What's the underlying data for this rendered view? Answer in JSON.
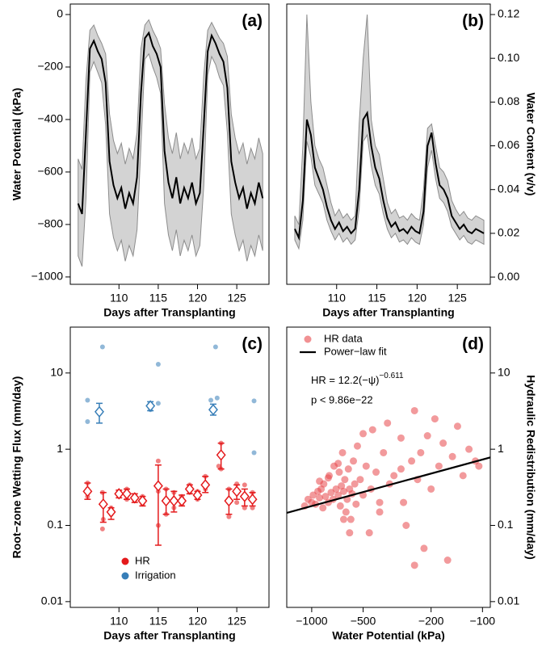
{
  "chart_data": [
    {
      "type": "line",
      "label": "(a)",
      "xlabel": "Days after Transplanting",
      "ylabel": "Water Potential (kPa)",
      "yaxis": "left",
      "xlim": [
        103.8,
        129.1
      ],
      "xticks": [
        110,
        115,
        120,
        125
      ],
      "ylim": [
        -1028,
        40
      ],
      "yticks": [
        0,
        {
          "value": -200,
          "label": "−200"
        },
        {
          "value": -400,
          "label": "−400"
        },
        {
          "value": -600,
          "label": "−600"
        },
        {
          "value": -800,
          "label": "−800"
        },
        {
          "value": -1000,
          "label": "−1000"
        }
      ],
      "color": "#000000",
      "band_color": "#d3d3d3",
      "x": [
        104.8,
        105.3,
        105.8,
        106.3,
        106.8,
        107.3,
        107.8,
        108.3,
        108.8,
        109.3,
        109.8,
        110.3,
        110.8,
        111.3,
        111.8,
        112.3,
        112.8,
        113.3,
        113.8,
        114.3,
        114.8,
        115.3,
        115.8,
        116.3,
        116.8,
        117.3,
        117.8,
        118.3,
        118.8,
        119.3,
        119.8,
        120.3,
        120.8,
        121.3,
        121.8,
        122.3,
        122.8,
        123.3,
        123.8,
        124.3,
        124.8,
        125.3,
        125.8,
        126.3,
        126.8,
        127.3,
        127.8,
        128.3
      ],
      "values": [
        -720,
        -760,
        -450,
        -130,
        -100,
        -140,
        -170,
        -260,
        -560,
        -650,
        -700,
        -660,
        -740,
        -680,
        -720,
        -620,
        -300,
        -90,
        -70,
        -120,
        -150,
        -200,
        -520,
        -640,
        -700,
        -620,
        -720,
        -660,
        -700,
        -640,
        -720,
        -680,
        -420,
        -140,
        -80,
        -110,
        -150,
        -180,
        -280,
        -560,
        -640,
        -700,
        -660,
        -740,
        -680,
        -720,
        -640,
        -700
      ],
      "lower": [
        -920,
        -960,
        -700,
        -220,
        -180,
        -220,
        -260,
        -420,
        -760,
        -850,
        -900,
        -860,
        -940,
        -880,
        -920,
        -820,
        -500,
        -170,
        -150,
        -200,
        -240,
        -300,
        -720,
        -840,
        -900,
        -820,
        -920,
        -860,
        -900,
        -840,
        -920,
        -880,
        -650,
        -230,
        -160,
        -190,
        -240,
        -270,
        -450,
        -760,
        -840,
        -900,
        -860,
        -940,
        -880,
        -920,
        -840,
        -900
      ],
      "upper": [
        -550,
        -590,
        -250,
        -60,
        -40,
        -80,
        -110,
        -150,
        -380,
        -480,
        -530,
        -490,
        -570,
        -510,
        -550,
        -450,
        -130,
        -40,
        -20,
        -60,
        -90,
        -130,
        -340,
        -470,
        -530,
        -450,
        -550,
        -490,
        -530,
        -470,
        -550,
        -510,
        -230,
        -60,
        -30,
        -60,
        -90,
        -110,
        -160,
        -380,
        -470,
        -530,
        -490,
        -570,
        -510,
        -550,
        -470,
        -530
      ]
    },
    {
      "type": "line",
      "label": "(b)",
      "xlabel": "Days after Transplanting",
      "ylabel": "Water Content (v/v)",
      "yaxis": "right",
      "xlim": [
        103.8,
        129.1
      ],
      "xticks": [
        110,
        115,
        120,
        125
      ],
      "ylim": [
        -0.0033,
        0.1248
      ],
      "yticks": [
        {
          "value": 0,
          "label": "0.00"
        },
        {
          "value": 0.02,
          "label": "0.02"
        },
        {
          "value": 0.04,
          "label": "0.04"
        },
        {
          "value": 0.06,
          "label": "0.06"
        },
        {
          "value": 0.08,
          "label": "0.08"
        },
        {
          "value": 0.1,
          "label": "0.10"
        },
        {
          "value": 0.12,
          "label": "0.12"
        }
      ],
      "color": "#000000",
      "band_color": "#d3d3d3",
      "x": [
        104.8,
        105.3,
        105.8,
        106.3,
        106.8,
        107.3,
        107.8,
        108.3,
        108.8,
        109.3,
        109.8,
        110.3,
        110.8,
        111.3,
        111.8,
        112.3,
        112.8,
        113.3,
        113.8,
        114.3,
        114.8,
        115.3,
        115.8,
        116.3,
        116.8,
        117.3,
        117.8,
        118.3,
        118.8,
        119.3,
        119.8,
        120.3,
        120.8,
        121.3,
        121.8,
        122.3,
        122.8,
        123.3,
        123.8,
        124.3,
        124.8,
        125.3,
        125.8,
        126.3,
        126.8,
        127.3,
        127.8,
        128.3
      ],
      "values": [
        0.022,
        0.018,
        0.035,
        0.072,
        0.065,
        0.05,
        0.045,
        0.04,
        0.032,
        0.026,
        0.022,
        0.025,
        0.021,
        0.023,
        0.02,
        0.022,
        0.04,
        0.072,
        0.075,
        0.06,
        0.05,
        0.045,
        0.035,
        0.027,
        0.023,
        0.025,
        0.021,
        0.022,
        0.02,
        0.023,
        0.021,
        0.02,
        0.03,
        0.06,
        0.066,
        0.052,
        0.042,
        0.04,
        0.036,
        0.028,
        0.025,
        0.022,
        0.024,
        0.021,
        0.02,
        0.022,
        0.021,
        0.02
      ],
      "lower": [
        0.017,
        0.013,
        0.026,
        0.062,
        0.055,
        0.042,
        0.038,
        0.034,
        0.026,
        0.021,
        0.017,
        0.02,
        0.016,
        0.018,
        0.015,
        0.017,
        0.031,
        0.062,
        0.065,
        0.051,
        0.042,
        0.038,
        0.029,
        0.022,
        0.018,
        0.02,
        0.016,
        0.017,
        0.015,
        0.018,
        0.016,
        0.015,
        0.024,
        0.05,
        0.058,
        0.045,
        0.036,
        0.034,
        0.03,
        0.023,
        0.02,
        0.017,
        0.019,
        0.016,
        0.015,
        0.017,
        0.016,
        0.015
      ],
      "upper": [
        0.028,
        0.024,
        0.06,
        0.12,
        0.08,
        0.06,
        0.054,
        0.05,
        0.042,
        0.034,
        0.028,
        0.031,
        0.027,
        0.029,
        0.026,
        0.028,
        0.07,
        0.1,
        0.12,
        0.072,
        0.06,
        0.056,
        0.045,
        0.034,
        0.029,
        0.031,
        0.027,
        0.028,
        0.026,
        0.029,
        0.027,
        0.026,
        0.04,
        0.068,
        0.07,
        0.06,
        0.05,
        0.048,
        0.044,
        0.035,
        0.031,
        0.028,
        0.03,
        0.027,
        0.026,
        0.028,
        0.027,
        0.026
      ]
    },
    {
      "type": "errorbar",
      "label": "(c)",
      "xlabel": "Days after Transplanting",
      "ylabel": "Root−zone Wetting Flux (mm/day)",
      "yaxis": "left",
      "yscale": "log",
      "legend": "bottom-left",
      "xlim": [
        103.8,
        129.1
      ],
      "xticks": [
        110,
        115,
        120,
        125
      ],
      "ylim": [
        0.0084,
        40
      ],
      "yticks": [
        0.01,
        0.1,
        1,
        10
      ],
      "series": [
        {
          "name": "HR",
          "color": "#e41a1c",
          "x": [
            106,
            108,
            109,
            110,
            111,
            112,
            113,
            115,
            116,
            117,
            118,
            119,
            120,
            121,
            123,
            124,
            125,
            126,
            127
          ],
          "values": [
            0.28,
            0.19,
            0.15,
            0.26,
            0.26,
            0.23,
            0.21,
            0.33,
            0.21,
            0.21,
            0.21,
            0.3,
            0.25,
            0.34,
            0.84,
            0.21,
            0.28,
            0.24,
            0.22
          ],
          "lower": [
            0.22,
            0.11,
            0.12,
            0.23,
            0.22,
            0.2,
            0.18,
            0.055,
            0.14,
            0.15,
            0.18,
            0.26,
            0.22,
            0.27,
            0.55,
            0.14,
            0.22,
            0.18,
            0.18
          ],
          "upper": [
            0.36,
            0.27,
            0.17,
            0.29,
            0.3,
            0.26,
            0.24,
            0.62,
            0.3,
            0.28,
            0.25,
            0.34,
            0.28,
            0.44,
            1.2,
            0.3,
            0.34,
            0.3,
            0.27
          ],
          "points_x": [
            106,
            106,
            106,
            107.9,
            107.9,
            108,
            109,
            109,
            110,
            110,
            111,
            111,
            112,
            112,
            113,
            113,
            115,
            115,
            115,
            116,
            116,
            117,
            117,
            118,
            118,
            119,
            119,
            120,
            120,
            121,
            121,
            122.7,
            123,
            123,
            124,
            124,
            125,
            125,
            126,
            126,
            127,
            127
          ],
          "points": [
            0.36,
            0.24,
            0.3,
            0.27,
            0.09,
            0.12,
            0.14,
            0.17,
            0.28,
            0.24,
            0.3,
            0.22,
            0.25,
            0.21,
            0.19,
            0.24,
            0.7,
            0.1,
            0.28,
            0.3,
            0.14,
            0.27,
            0.17,
            0.24,
            0.19,
            0.34,
            0.27,
            0.28,
            0.22,
            0.44,
            0.3,
            0.6,
            1.2,
            0.55,
            0.3,
            0.13,
            0.35,
            0.2,
            0.34,
            0.17,
            0.27,
            0.17
          ]
        },
        {
          "name": "Irrigation",
          "color": "#377eb8",
          "x": [
            107.5,
            114,
            122
          ],
          "values": [
            3.1,
            3.7,
            3.3
          ],
          "lower": [
            2.2,
            3.2,
            2.8
          ],
          "upper": [
            4.0,
            4.2,
            3.9
          ],
          "points_x": [
            106,
            106,
            107.9,
            114,
            114,
            115,
            115,
            121.7,
            122.3,
            122.5,
            127.2,
            127.2
          ],
          "points": [
            4.4,
            2.3,
            22,
            4.0,
            3.3,
            13,
            4.0,
            4.4,
            22,
            4.7,
            4.3,
            0.9
          ]
        }
      ]
    },
    {
      "type": "scatter",
      "label": "(d)",
      "xlabel": "Water Potential (kPa)",
      "ylabel": "Hydraulic Redistribution (mm/day)",
      "yaxis": "right",
      "xscale": "log",
      "yscale": "log",
      "legend": "top-left",
      "annotation": "HR = 12.2(−ψ)",
      "annotation_exponent": "−0.611",
      "annotation_p": "p < 9.86e−22",
      "xlim": [
        -1400,
        -90
      ],
      "xticks": [
        {
          "value": -1000,
          "label": "−1000"
        },
        {
          "value": -500,
          "label": "−500"
        },
        {
          "value": -200,
          "label": "−200"
        },
        {
          "value": -100,
          "label": "−100"
        }
      ],
      "ylim": [
        0.0084,
        40
      ],
      "yticks": [
        0.01,
        0.1,
        1,
        10
      ],
      "series": [
        {
          "name": "HR data",
          "color": "#e8474b",
          "x": [
            -1100,
            -1050,
            -1000,
            -980,
            -950,
            -920,
            -900,
            -880,
            -860,
            -850,
            -830,
            -800,
            -790,
            -770,
            -750,
            -740,
            -720,
            -700,
            -690,
            -680,
            -670,
            -660,
            -650,
            -640,
            -630,
            -620,
            -610,
            -600,
            -590,
            -580,
            -570,
            -560,
            -550,
            -540,
            -520,
            -500,
            -480,
            -460,
            -450,
            -440,
            -420,
            -400,
            -380,
            -360,
            -350,
            -330,
            -300,
            -290,
            -280,
            -260,
            -250,
            -240,
            -230,
            -220,
            -210,
            -200,
            -190,
            -180,
            -170,
            -160,
            -150,
            -140,
            -130,
            -120,
            -110,
            -105,
            -900,
            -700,
            -600,
            -500,
            -400,
            -300,
            -250,
            -800,
            -650
          ],
          "values": [
            0.18,
            0.22,
            0.2,
            0.25,
            0.19,
            0.28,
            0.23,
            0.3,
            0.17,
            0.35,
            0.24,
            0.2,
            0.45,
            0.27,
            0.22,
            0.6,
            0.3,
            0.25,
            0.5,
            0.18,
            0.33,
            0.9,
            0.28,
            0.4,
            0.15,
            0.22,
            0.55,
            0.3,
            0.12,
            0.26,
            0.7,
            0.35,
            0.19,
            1.1,
            0.4,
            0.25,
            0.6,
            0.08,
            0.3,
            1.8,
            0.5,
            0.15,
            0.9,
            2.2,
            0.35,
            0.45,
            1.4,
            0.2,
            0.1,
            0.7,
            3.2,
            0.4,
            0.9,
            0.05,
            1.5,
            0.3,
            2.5,
            0.6,
            1.2,
            0.035,
            0.8,
            2.0,
            0.45,
            1.0,
            0.7,
            0.6,
            0.38,
            0.65,
            0.08,
            1.6,
            0.2,
            0.55,
            0.03,
            0.42,
            0.12
          ]
        },
        {
          "name": "Power−law fit",
          "color": "#000000",
          "style": "line",
          "x": [
            -1400,
            -90
          ],
          "values": [
            0.146,
            0.78
          ]
        }
      ]
    }
  ]
}
